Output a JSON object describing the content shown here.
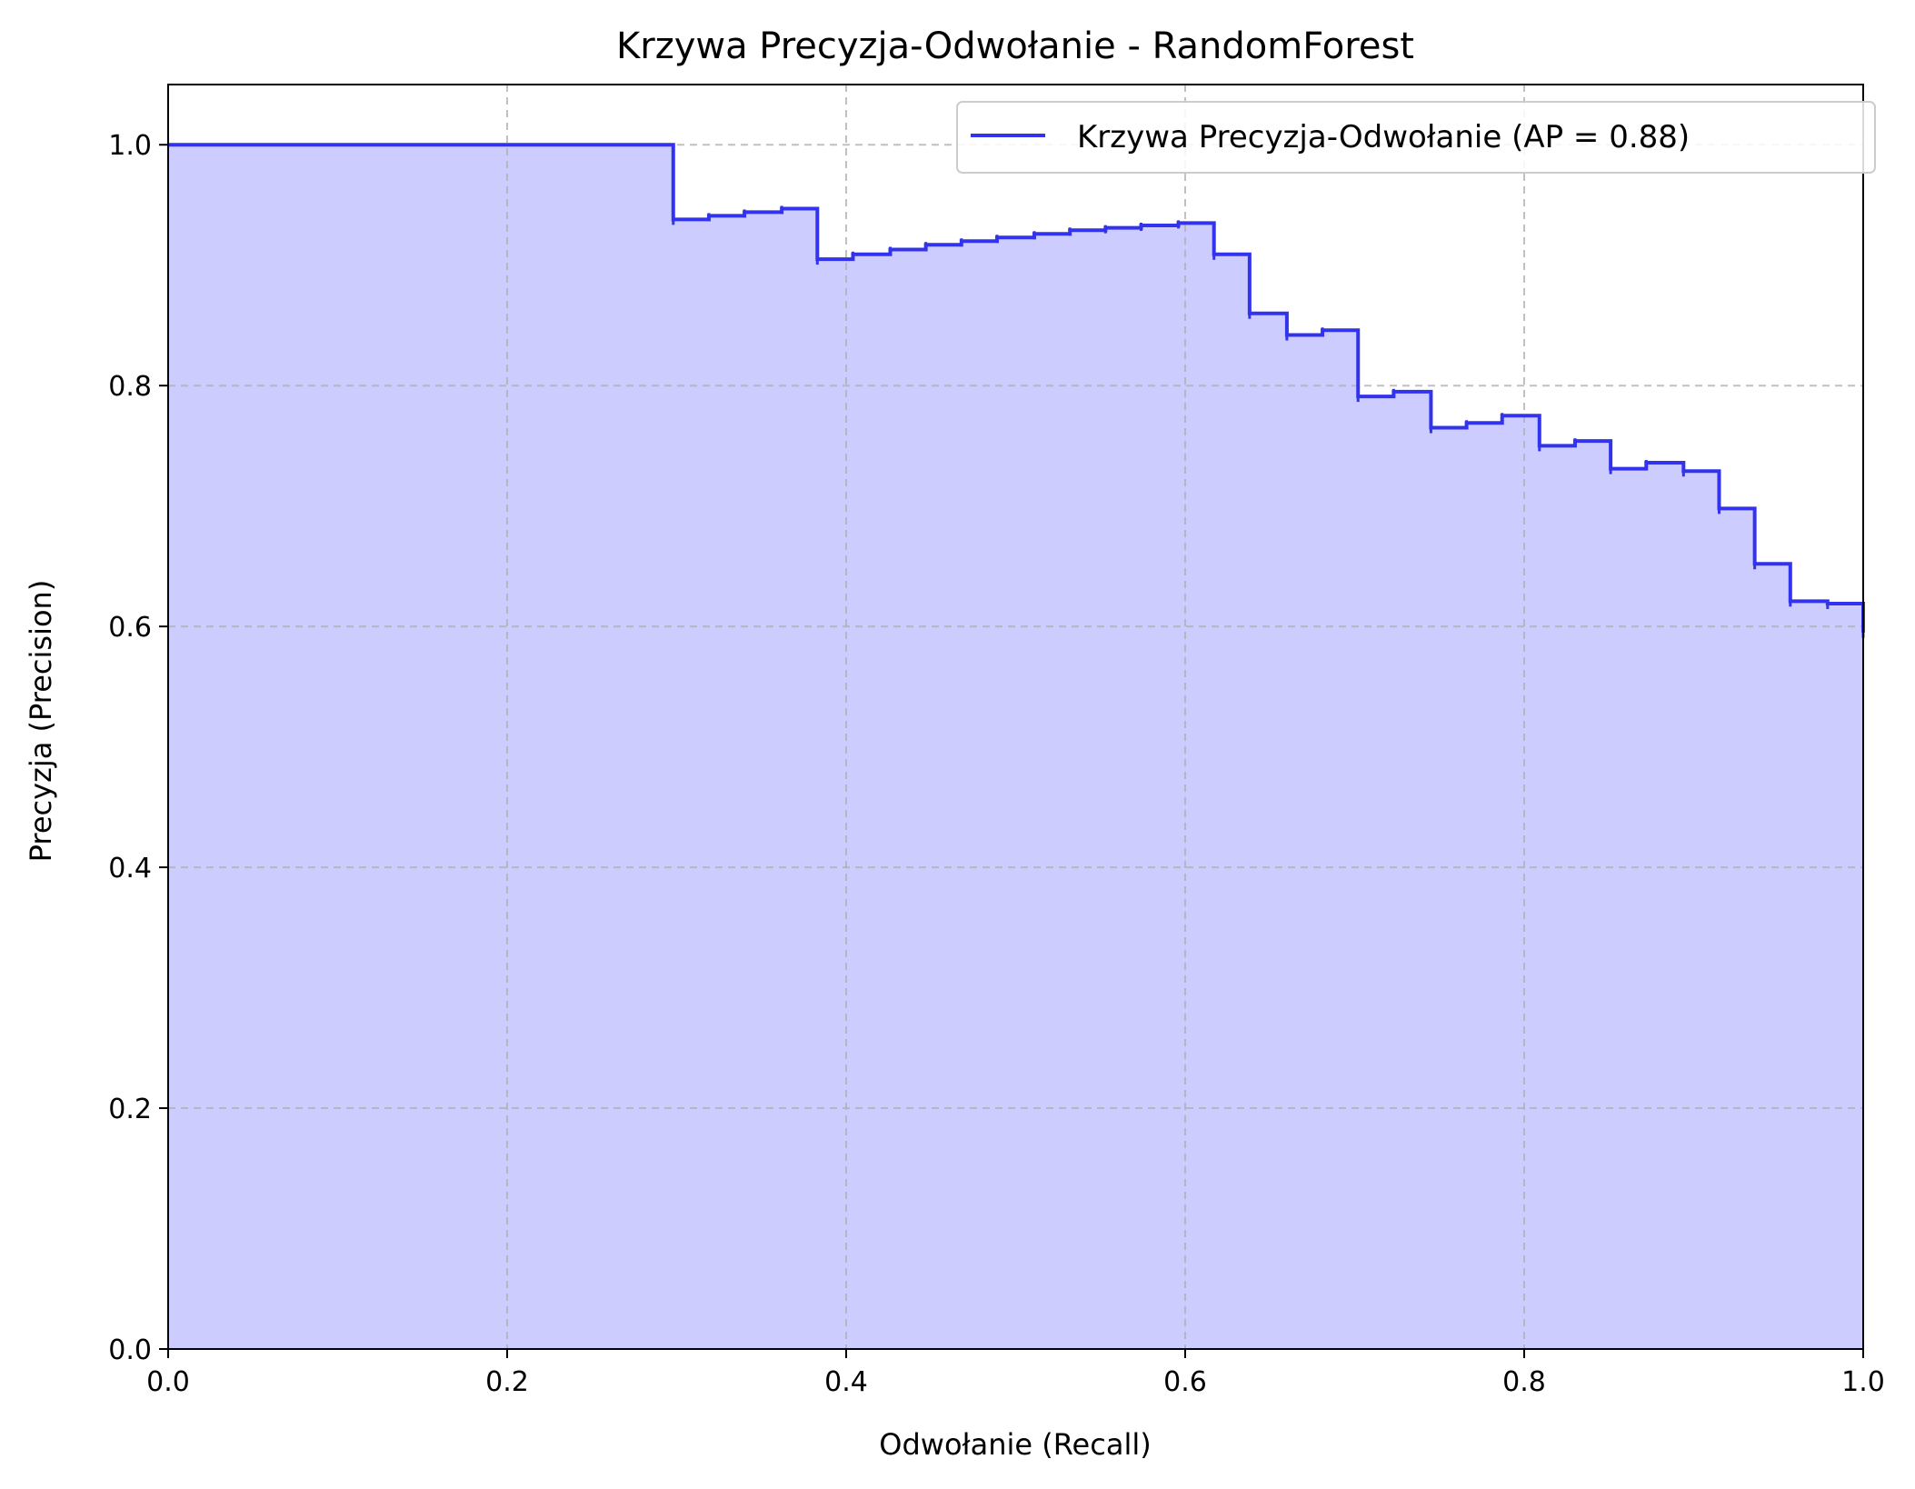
{
  "chart_data": {
    "type": "line",
    "title": "Krzywa Precyzja-Odwołanie - RandomForest",
    "xlabel": "Odwołanie (Recall)",
    "ylabel": "Precyzja (Precision)",
    "xlim": [
      0.0,
      1.0
    ],
    "ylim": [
      0.0,
      1.05
    ],
    "xticks": [
      "0.0",
      "0.2",
      "0.4",
      "0.6",
      "0.8",
      "1.0"
    ],
    "yticks": [
      "0.0",
      "0.2",
      "0.4",
      "0.6",
      "0.8",
      "1.0"
    ],
    "grid": true,
    "legend_position": "top-right",
    "step_style": "post",
    "fill_under": true,
    "colors": {
      "line": "#3333ee",
      "fill": "#ccccff"
    },
    "series": [
      {
        "name": "Krzywa Precyzja-Odwołanie (AP = 0.88)",
        "recall": [
          0.0,
          0.298,
          0.319,
          0.34,
          0.362,
          0.383,
          0.404,
          0.426,
          0.447,
          0.468,
          0.489,
          0.511,
          0.532,
          0.553,
          0.574,
          0.596,
          0.617,
          0.638,
          0.66,
          0.681,
          0.702,
          0.723,
          0.745,
          0.766,
          0.787,
          0.809,
          0.83,
          0.851,
          0.872,
          0.894,
          0.915,
          0.936,
          0.957,
          0.979,
          1.0
        ],
        "precision": [
          1.0,
          0.938,
          0.941,
          0.944,
          0.947,
          0.905,
          0.909,
          0.913,
          0.917,
          0.92,
          0.923,
          0.926,
          0.929,
          0.931,
          0.933,
          0.935,
          0.909,
          0.86,
          0.842,
          0.846,
          0.791,
          0.795,
          0.765,
          0.769,
          0.775,
          0.75,
          0.754,
          0.731,
          0.736,
          0.729,
          0.698,
          0.652,
          0.621,
          0.619,
          0.595
        ]
      }
    ]
  }
}
